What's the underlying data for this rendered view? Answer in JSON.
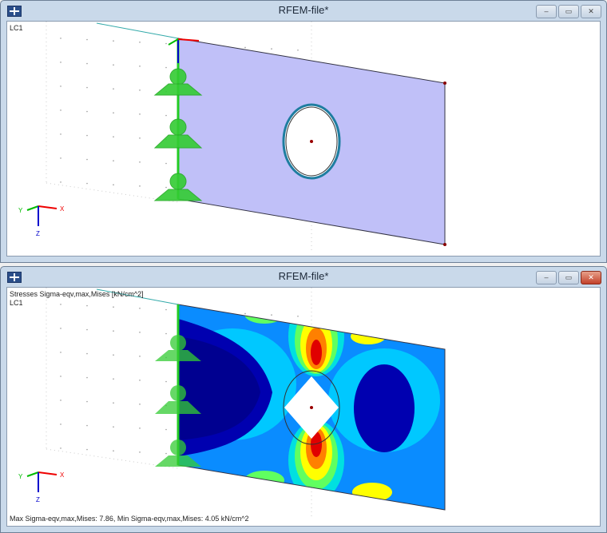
{
  "windows": [
    {
      "title": "RFEM-file*",
      "load_case": "LC1",
      "controls": {
        "minimize": "–",
        "maximize": "▭",
        "close": "✕"
      }
    },
    {
      "title": "RFEM-file*",
      "result_label": "Stresses Sigma-eqv,max,Mises [kN/cm^2]",
      "load_case": "LC1",
      "summary": "Max Sigma-eqv,max,Mises: 7.86, Min Sigma-eqv,max,Mises: 4.05 kN/cm^2",
      "controls": {
        "minimize": "–",
        "maximize": "▭",
        "close": "✕"
      }
    }
  ],
  "axes": {
    "x": "X",
    "y": "Y",
    "z": "Z"
  },
  "colors": {
    "plate": "#c0c0f8",
    "contour_min": "#000090",
    "contour_max": "#e00000",
    "frame": "#c9d9ea"
  }
}
